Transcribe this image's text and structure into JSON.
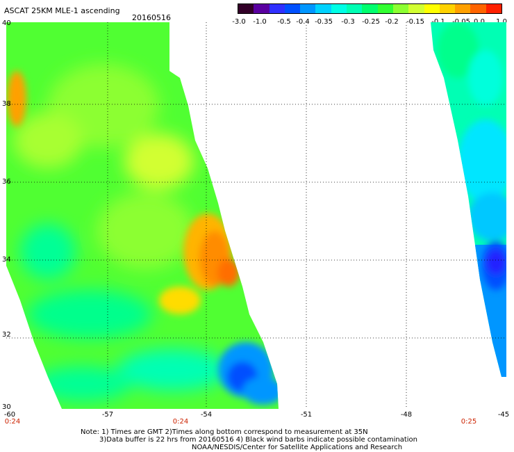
{
  "title": "ASCAT 25KM MLE-1 ascending",
  "date": "20160516",
  "colorbar": {
    "colors": [
      "#320028",
      "#5a00a0",
      "#3030ff",
      "#0050ff",
      "#0096ff",
      "#00d2ff",
      "#00ffe6",
      "#00ffb4",
      "#00ff6e",
      "#32ff32",
      "#8cff32",
      "#d2ff32",
      "#ffff00",
      "#ffd200",
      "#ffa000",
      "#ff6400",
      "#ff2000"
    ],
    "tick_labels": [
      "-3.0",
      "-1.0",
      "-0.5",
      "-0.4",
      "-0.35",
      "-0.3",
      "-0.25",
      "-0.2",
      "-0.15",
      "-0.1",
      "-0.05",
      "0.0",
      "1.0"
    ]
  },
  "map": {
    "lat_labels": [
      "40",
      "38",
      "36",
      "34",
      "32",
      "30"
    ],
    "lon_labels": [
      "-60",
      "-57",
      "-54",
      "-51",
      "-48",
      "-45"
    ],
    "time_labels": [
      "0:24",
      "0:24",
      "0:25"
    ]
  },
  "note": {
    "line1": "Note: 1) Times are GMT 2)Times along bottom correspond to measurement at 35N",
    "line2": "3)Data buffer is 22 hrs from 20160516 4) Black wind barbs indicate possible contamination",
    "line3": "NOAA/NESDIS/Center for Satellite Applications and Research"
  }
}
